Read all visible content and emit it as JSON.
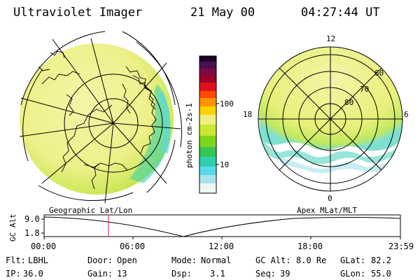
{
  "header": {
    "instrument": "Ultraviolet Imager",
    "date": "21 May 00",
    "time": "04:27:44 UT"
  },
  "colorbar": {
    "unit_label": "photon cm-2s-1",
    "ticks": [
      "100",
      "10"
    ],
    "scale": "log",
    "colors": [
      "#1a0026",
      "#4b0f4f",
      "#9b0024",
      "#e0101c",
      "#ff7f00",
      "#ffd200",
      "#e8f070",
      "#a9e000",
      "#4ccc3a",
      "#2fd0b0",
      "#58d8e8",
      "#b8e8f0",
      "#f2f8f6"
    ]
  },
  "geo_map": {
    "label": "Geographic Lat/Lon",
    "fill_color": "#eef08a",
    "edge_color": "#9cdc30"
  },
  "polar_map": {
    "label": "Apex MLat/MLT",
    "mlt_labels": [
      "12",
      "18",
      "6",
      "0"
    ],
    "lat_labels": [
      "60",
      "70",
      "80"
    ],
    "fill_color": "#eef08a",
    "edge_color": "#7ee0d0"
  },
  "altitude_panel": {
    "axis_label": "GC Alt",
    "y_ticks": [
      "9.0",
      "1.8"
    ],
    "x_ticks": [
      "00:00",
      "06:00",
      "12:00",
      "18:00",
      "23:59"
    ],
    "current_time_marker_color": "#d02040"
  },
  "status": {
    "row1": [
      {
        "label": "Flt:",
        "value": "LBHL"
      },
      {
        "label": "Door:",
        "value": "Open"
      },
      {
        "label": "Mode:",
        "value": "Normal"
      },
      {
        "label": "GC Alt:",
        "value": "8.0 Re"
      },
      {
        "label": "GLat:",
        "value": "82.2"
      }
    ],
    "row2": [
      {
        "label": "IP:",
        "value": "36.0"
      },
      {
        "label": "Gain:",
        "value": "13"
      },
      {
        "label": "Dsp:",
        "value": "3.1"
      },
      {
        "label": "Seq:",
        "value": "39"
      },
      {
        "label": "GLon:",
        "value": "55.0"
      }
    ]
  }
}
